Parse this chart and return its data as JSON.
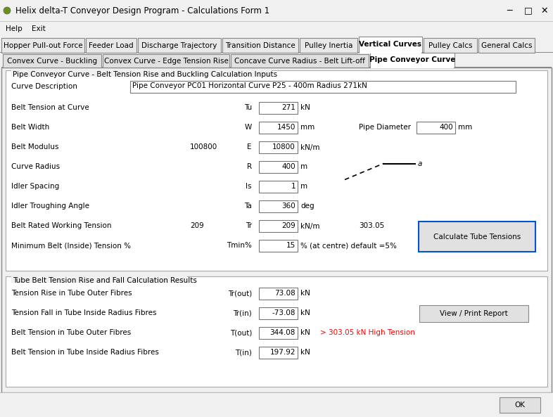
{
  "title_bar": "Helix delta-T Conveyor Design Program - Calculations Form 1",
  "tabs_main": [
    "Hopper Pull-out Force",
    "Feeder Load",
    "Discharge Trajectory",
    "Transition Distance",
    "Pulley Inertia",
    "Vertical Curves",
    "Pulley Calcs",
    "General Calcs"
  ],
  "active_main_tab": "Vertical Curves",
  "tabs_sub": [
    "Convex Curve - Buckling",
    "Convex Curve - Edge Tension Rise",
    "Concave Curve Radius - Belt Lift-off",
    "Pipe Conveyor Curve"
  ],
  "active_sub_tab": "Pipe Conveyor Curve",
  "section1_title": "Pipe Conveyor Curve - Belt Tension Rise and Buckling Calculation Inputs",
  "curve_description_label": "Curve Description",
  "curve_description_value": "Pipe Conveyor PC01 Horizontal Curve P25 - 400m Radius 271kN",
  "fields_input": [
    {
      "label": "Belt Tension at Curve",
      "pre": "",
      "sym": "Tu",
      "val": "271",
      "unit": "kN",
      "ex_label": "",
      "ex_val": "",
      "ex_unit": ""
    },
    {
      "label": "Belt Width",
      "pre": "",
      "sym": "W",
      "val": "1450",
      "unit": "mm",
      "ex_label": "Pipe Diameter",
      "ex_val": "400",
      "ex_unit": "mm"
    },
    {
      "label": "Belt Modulus",
      "pre": "100800",
      "sym": "E",
      "val": "10800",
      "unit": "kN/m",
      "ex_label": "",
      "ex_val": "",
      "ex_unit": ""
    },
    {
      "label": "Curve Radius",
      "pre": "",
      "sym": "R",
      "val": "400",
      "unit": "m",
      "ex_label": "",
      "ex_val": "",
      "ex_unit": ""
    },
    {
      "label": "Idler Spacing",
      "pre": "",
      "sym": "Is",
      "val": "1",
      "unit": "m",
      "ex_label": "",
      "ex_val": "",
      "ex_unit": ""
    },
    {
      "label": "Idler Troughing Angle",
      "pre": "",
      "sym": "Ta",
      "val": "360",
      "unit": "deg",
      "ex_label": "",
      "ex_val": "",
      "ex_unit": ""
    },
    {
      "label": "Belt Rated Working Tension",
      "pre": "209",
      "sym": "Tr",
      "val": "209",
      "unit": "kN/m",
      "ex_label": "303.05",
      "ex_val": "",
      "ex_unit": ""
    },
    {
      "label": "Minimum Belt (Inside) Tension %",
      "pre": "",
      "sym": "Tmin%",
      "val": "15",
      "unit": "% (at centre) default =5%",
      "ex_label": "",
      "ex_val": "",
      "ex_unit": ""
    }
  ],
  "section2_title": "Tube Belt Tension Rise and Fall Calculation Results",
  "fields_output": [
    {
      "label": "Tension Rise in Tube Outer Fibres",
      "sym": "Tr(out)",
      "val": "73.08",
      "unit": "kN",
      "note": ""
    },
    {
      "label": "Tension Fall in Tube Inside Radius Fibres",
      "sym": "Tr(in)",
      "val": "-73.08",
      "unit": "kN",
      "note": ""
    },
    {
      "label": "Belt Tension in Tube Outer Fibres",
      "sym": "T(out)",
      "val": "344.08",
      "unit": "kN",
      "note": "> 303.05 kN High Tension"
    },
    {
      "label": "Belt Tension in Tube Inside Radius Fibres",
      "sym": "T(in)",
      "val": "197.92",
      "unit": "kN",
      "note": ""
    }
  ],
  "btn_calculate": "Calculate Tube Tensions",
  "btn_report": "View / Print Report",
  "btn_ok": "OK",
  "red_color": "#ff0000",
  "blue_border": "#0055cc"
}
